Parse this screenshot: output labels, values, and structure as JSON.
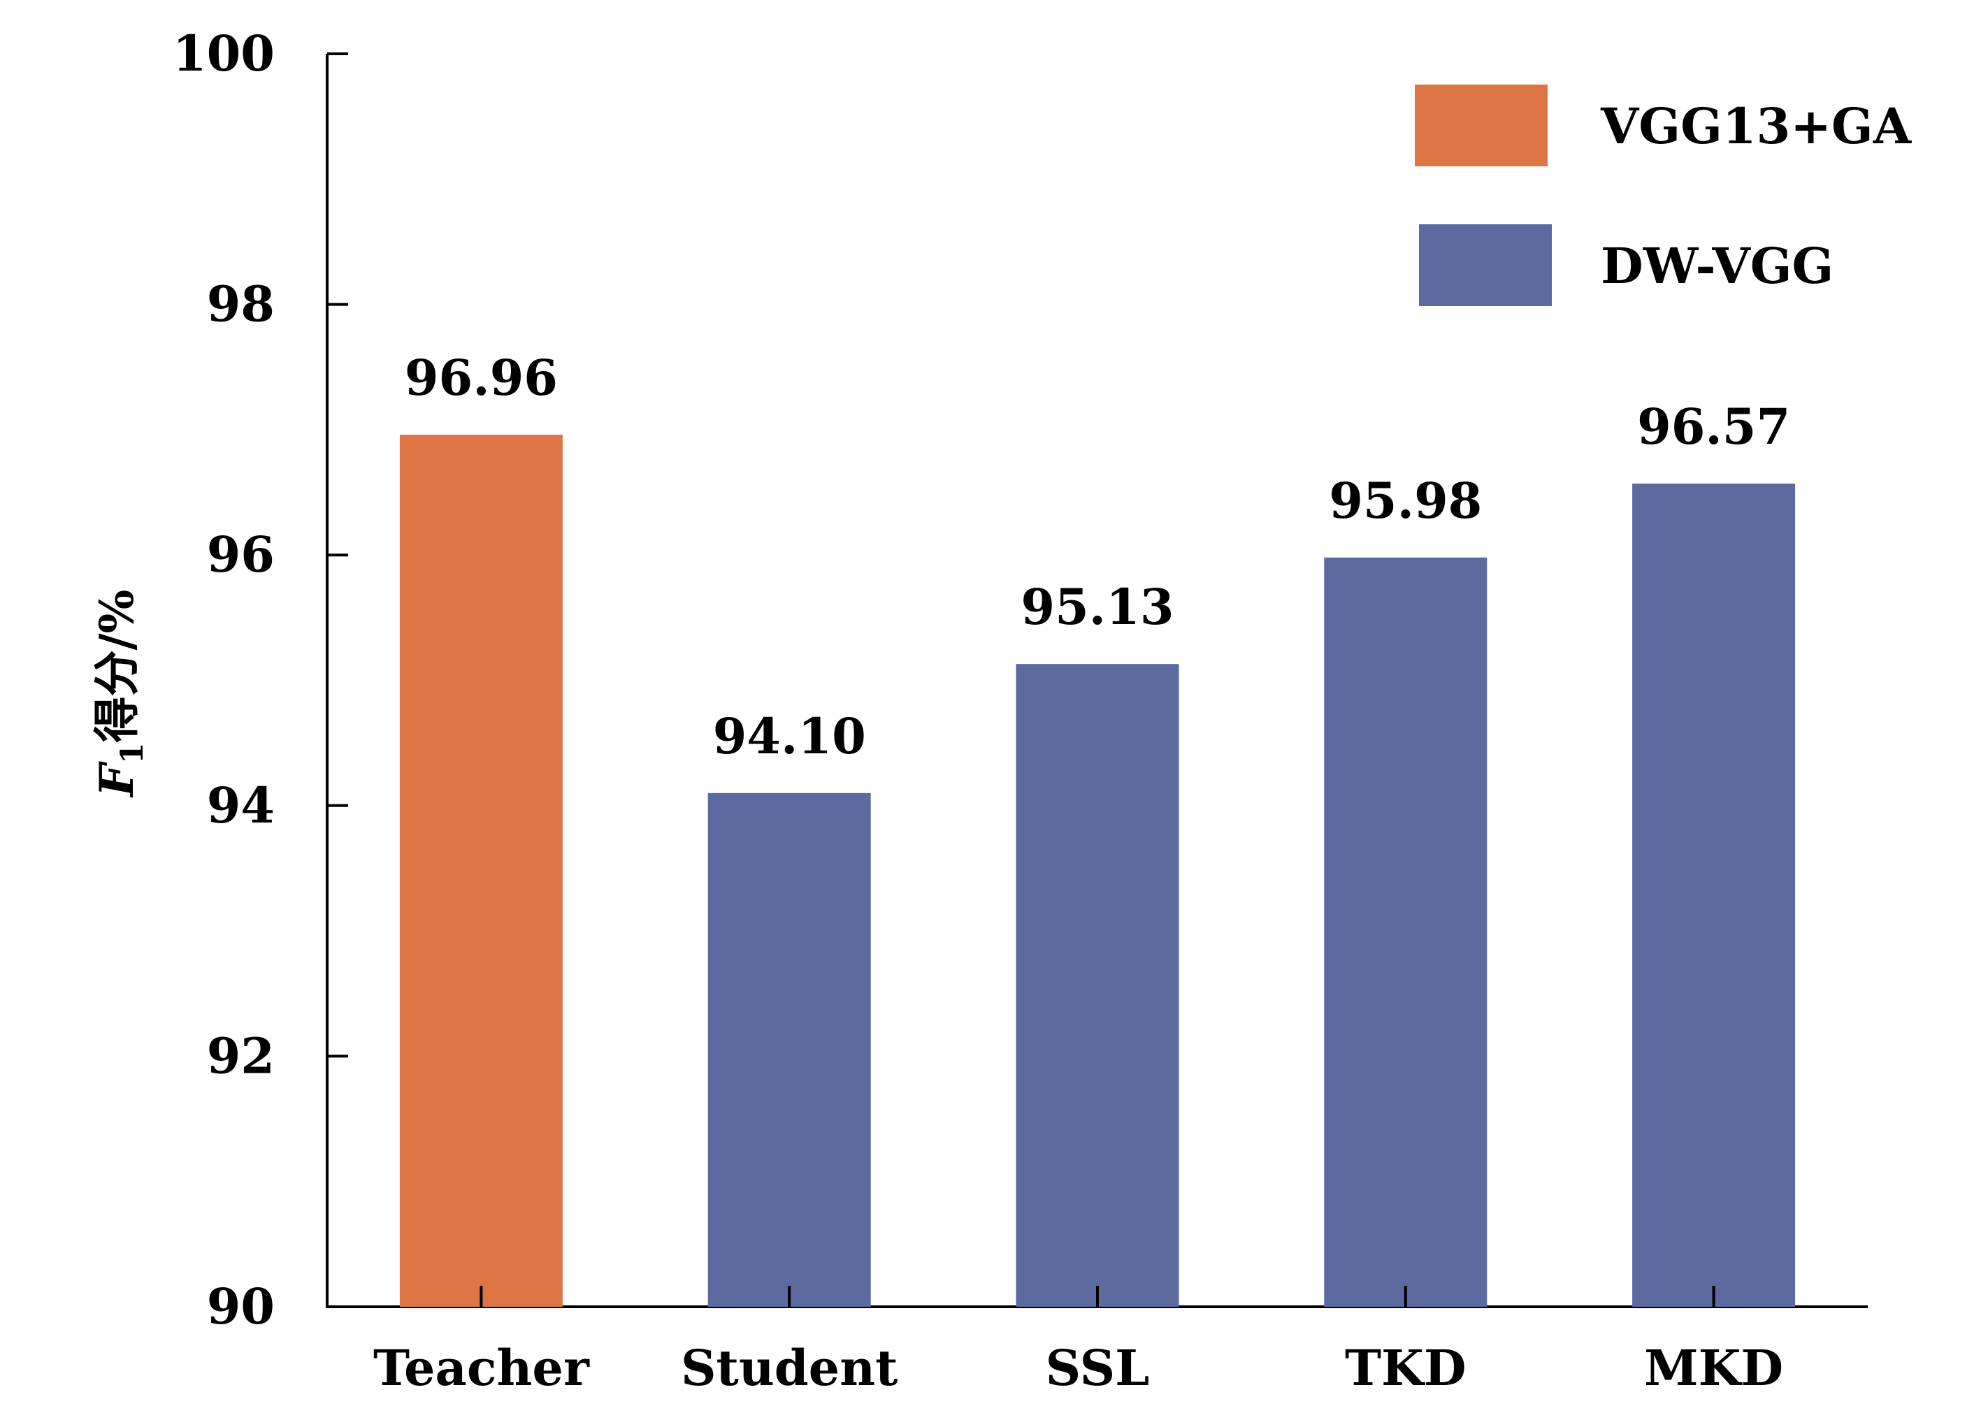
{
  "chart_data": {
    "type": "bar",
    "categories": [
      "Teacher",
      "Student",
      "SSL",
      "TKD",
      "MKD"
    ],
    "values": [
      96.96,
      94.1,
      95.13,
      95.98,
      96.57
    ],
    "value_labels": [
      "96.96",
      "94.10",
      "95.13",
      "95.98",
      "96.57"
    ],
    "series_index": [
      0,
      1,
      1,
      1,
      1
    ],
    "series": [
      {
        "name": "VGG13+GA",
        "color": "#dd7544"
      },
      {
        "name": "DW-VGG",
        "color": "#5b6a9f"
      }
    ],
    "ylabel_italic": "F",
    "ylabel_sub": "1",
    "ylabel_rest": "得分/%",
    "ylim": [
      90,
      100
    ],
    "yticks": [
      90,
      92,
      94,
      96,
      98,
      100
    ],
    "ytick_labels": [
      "90",
      "92",
      "94",
      "96",
      "98",
      "100"
    ],
    "legend_position": "top-right",
    "grid": false
  }
}
